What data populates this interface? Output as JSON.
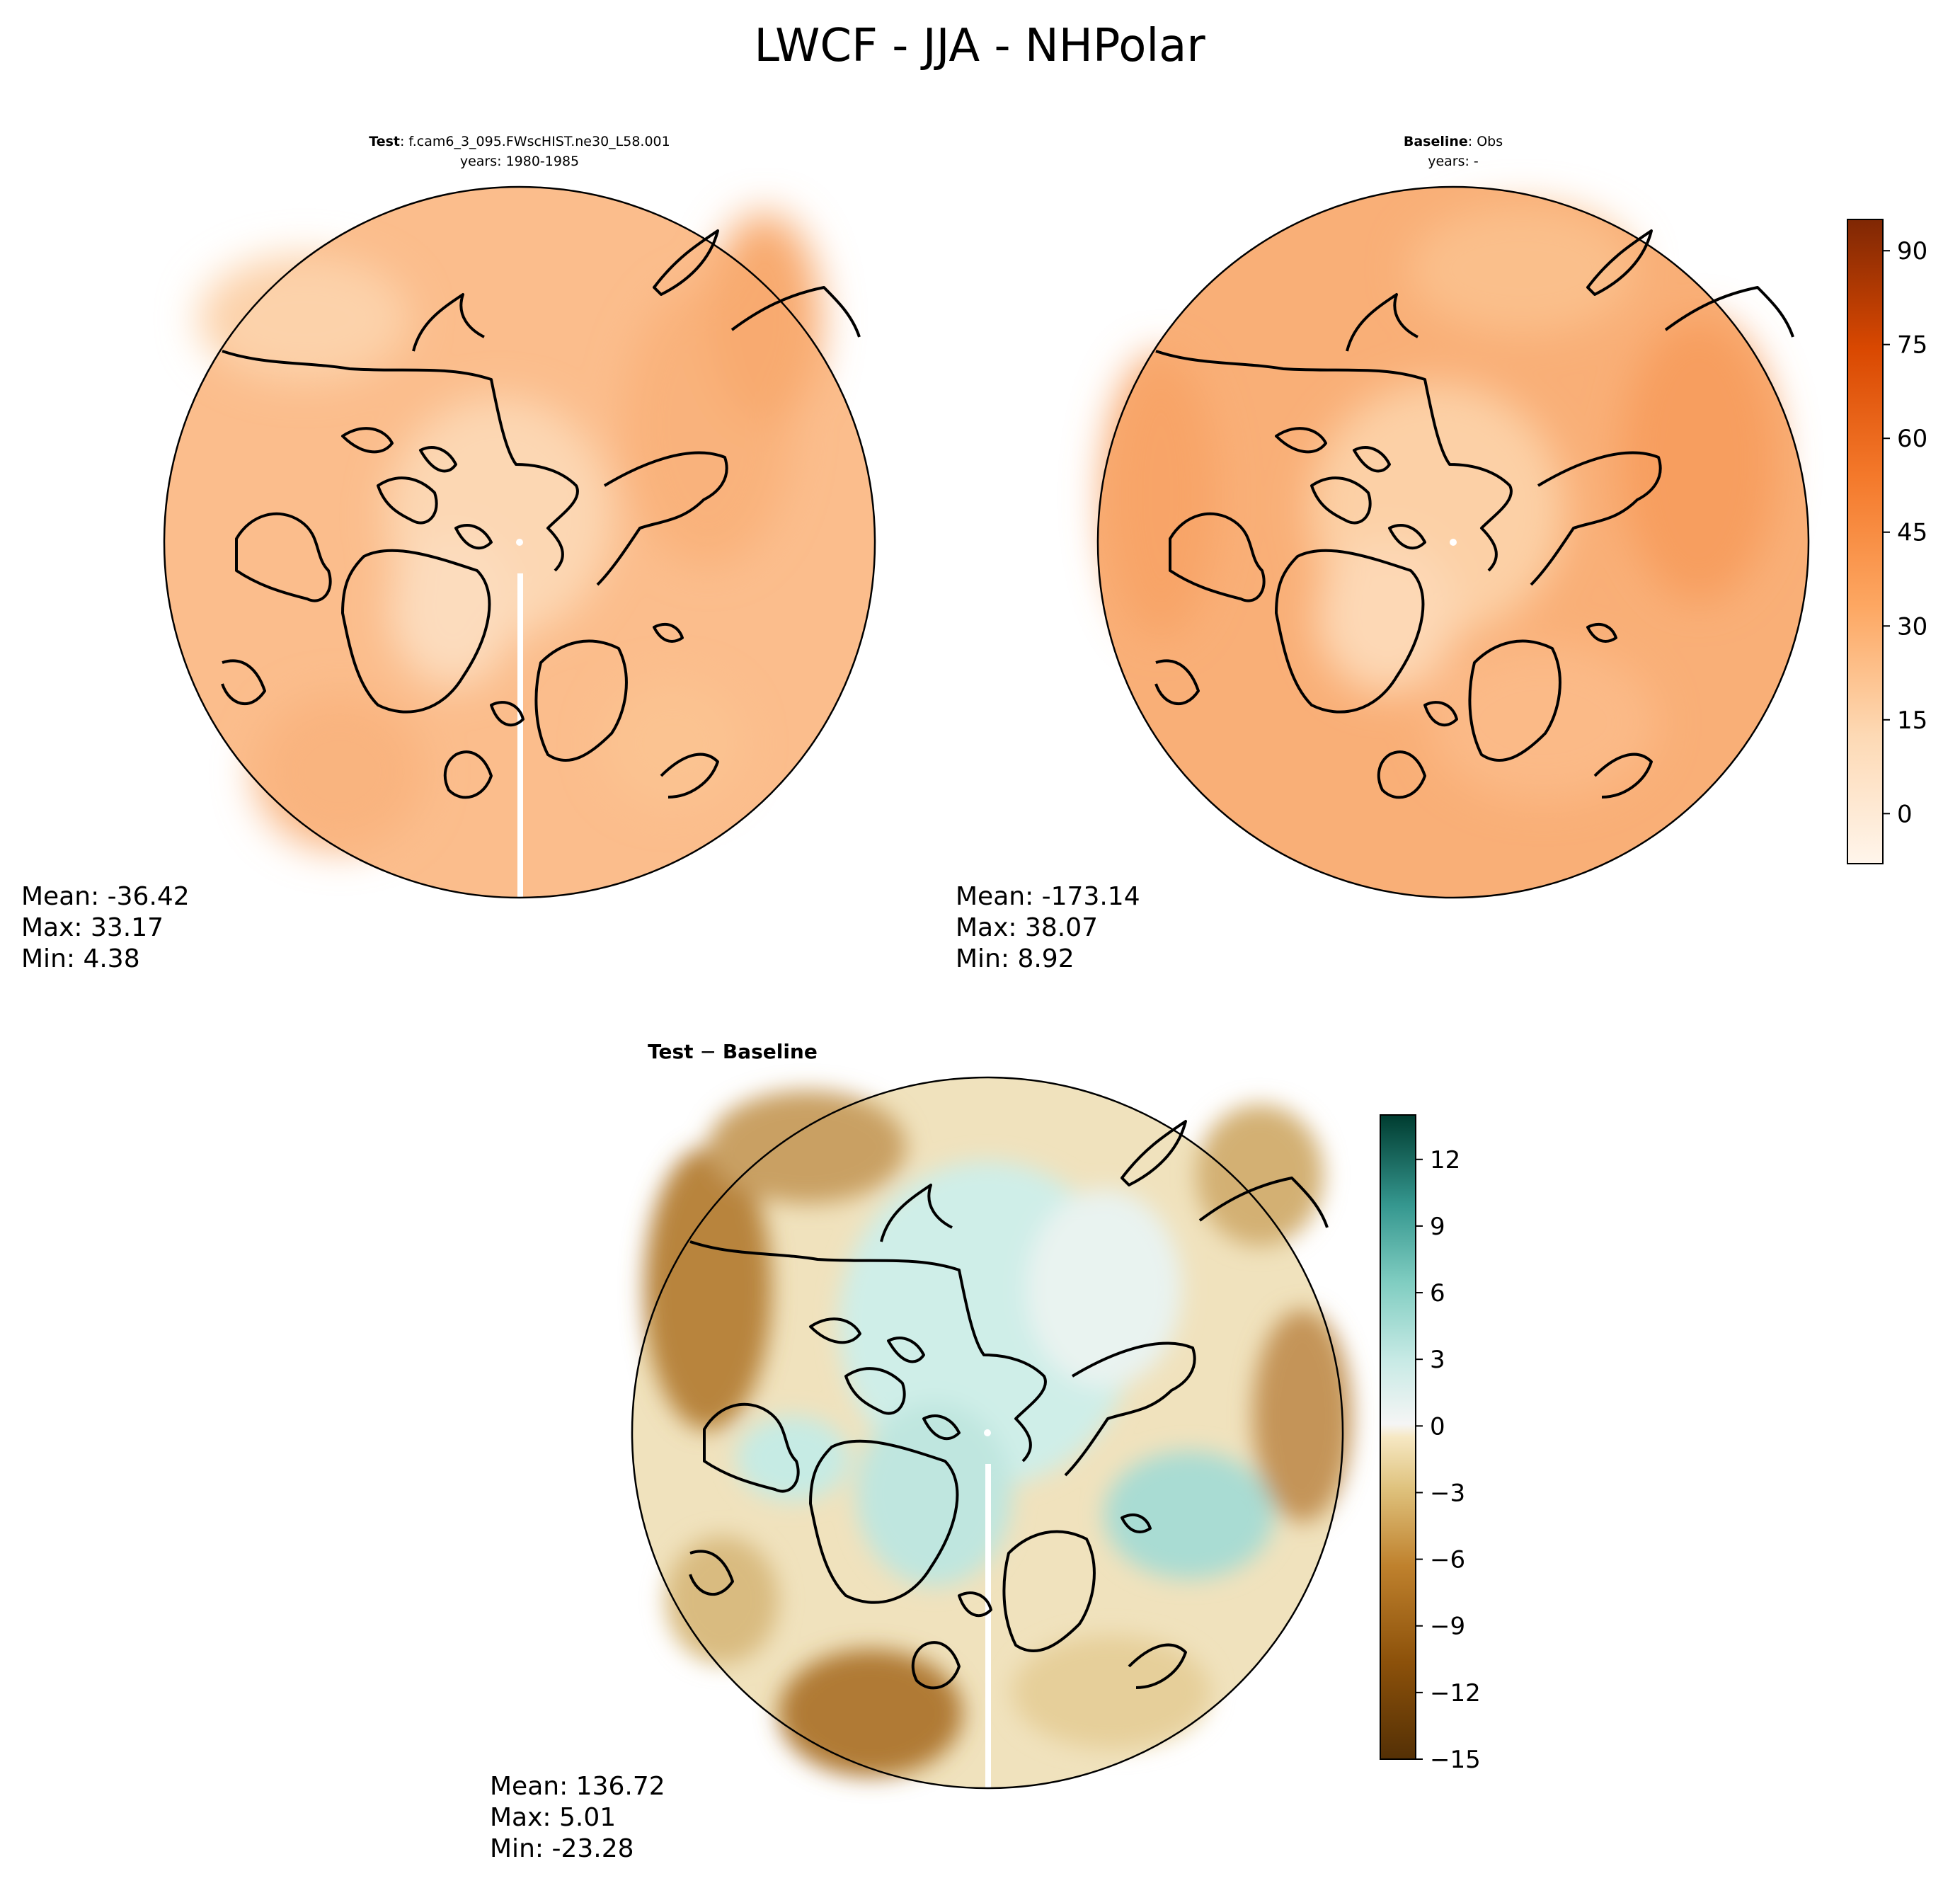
{
  "figure": {
    "title": "LWCF - JJA - NHPolar"
  },
  "panels": {
    "test": {
      "label_bold": "Test",
      "label_rest": ": f.cam6_3_095.FWscHIST.ne30_L58.001",
      "years": "years: 1980-1985",
      "stats": {
        "mean": "Mean: -36.42",
        "max": "Max: 33.17",
        "min": "Min:  4.38"
      }
    },
    "baseline": {
      "label_bold": "Baseline",
      "label_rest": ": Obs",
      "years": "years: -",
      "stats": {
        "mean": "Mean: -173.14",
        "max": "Max: 38.07",
        "min": "Min:  8.92"
      }
    },
    "diff": {
      "label_bold_a": "Test",
      "label_sep": " − ",
      "label_bold_b": "Baseline",
      "stats": {
        "mean": "Mean: 136.72",
        "max": "Max:  5.01",
        "min": "Min: -23.28"
      }
    }
  },
  "chart_data": [
    {
      "type": "heatmap",
      "panel": "test",
      "projection": "north polar stereographic",
      "colormap": "Oranges",
      "colorbar_shared_with": "baseline",
      "clim": [
        -8,
        95
      ],
      "stats": {
        "mean": -36.42,
        "max": 33.17,
        "min": 4.38
      },
      "field_levels": {
        "polar_ocean": 10,
        "greenland": 8,
        "mid_latitudes": 22,
        "north_atlantic": 25
      }
    },
    {
      "type": "heatmap",
      "panel": "baseline",
      "projection": "north polar stereographic",
      "colormap": "Oranges",
      "clim": [
        -8,
        95
      ],
      "colorbar_ticks": [
        0,
        15,
        30,
        45,
        60,
        75,
        90
      ],
      "colorbar_tick_labels": [
        "0",
        "15",
        "30",
        "45",
        "60",
        "75",
        "90"
      ],
      "stats": {
        "mean": -173.14,
        "max": 38.07,
        "min": 8.92
      },
      "field_levels": {
        "polar_ocean": 12,
        "greenland": 8,
        "mid_latitudes": 26,
        "north_atlantic": 30
      }
    },
    {
      "type": "heatmap",
      "panel": "diff",
      "projection": "north polar stereographic",
      "colormap": "BrBG",
      "clim": [
        -15,
        14
      ],
      "colorbar_ticks": [
        12,
        9,
        6,
        3,
        0,
        -3,
        -6,
        -9,
        -12,
        -15
      ],
      "colorbar_tick_labels": [
        "12",
        "9",
        "6",
        "3",
        "0",
        "−3",
        "−6",
        "−9",
        "−12",
        "−15"
      ],
      "stats": {
        "mean": 136.72,
        "max": 5.01,
        "min": -23.28
      },
      "field_levels": {
        "polar_ocean": 2,
        "greenland": 3,
        "siberia": -10,
        "north_america": -9,
        "scandinavia": 3
      }
    }
  ]
}
